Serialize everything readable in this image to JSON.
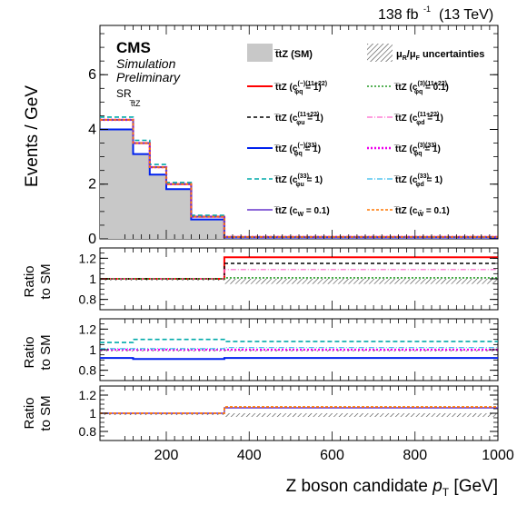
{
  "header": {
    "lumi": "138 fb",
    "lumi_exp": "-1",
    "energy": "(13 TeV)",
    "cms": "CMS",
    "sim": "Simulation",
    "prelim": "Preliminary",
    "region": "SR",
    "region_sub": "t̅tZ"
  },
  "colors": {
    "sm_fill": "#c8c8c8",
    "axis": "#000000"
  },
  "chart_data": [
    {
      "type": "line",
      "panel": "main",
      "ylabel": "Events / GeV",
      "xlim": [
        40,
        1000
      ],
      "ylim": [
        0,
        7.8
      ],
      "yticks": [
        0,
        2,
        4,
        6
      ],
      "bin_edges": [
        40,
        120,
        160,
        200,
        260,
        340,
        1000
      ],
      "series": [
        {
          "name": "t̅tZ (SM)",
          "style": "fill",
          "color": "#c8c8c8",
          "values": [
            4.0,
            3.1,
            2.35,
            1.82,
            0.71,
            0.05
          ]
        },
        {
          "name": "t̅tZ (c(−)(11+22)φq = 1)",
          "color": "#ff0000",
          "dash": "",
          "width": 2,
          "values": [
            4.35,
            3.5,
            2.62,
            2.0,
            0.81,
            0.07
          ]
        },
        {
          "name": "t̅tZ (c(3)(11+22)φq = 0.1)",
          "color": "#229922",
          "dash": "2,2",
          "width": 1.6,
          "values": [
            4.35,
            3.5,
            2.62,
            2.0,
            0.81,
            0.07
          ]
        },
        {
          "name": "t̅tZ (c(11+22)φu = 1)",
          "color": "#000000",
          "dash": "4,3",
          "width": 1.4,
          "values": [
            4.35,
            3.5,
            2.62,
            2.0,
            0.81,
            0.07
          ]
        },
        {
          "name": "t̅tZ (c(11+22)φd = 1)",
          "color": "#ff66cc",
          "dash": "6,2,1,2",
          "width": 1.2,
          "values": [
            4.35,
            3.5,
            2.62,
            2.0,
            0.81,
            0.07
          ]
        },
        {
          "name": "t̅tZ (c(−)(33)φq = 1)",
          "color": "#0022ee",
          "dash": "",
          "width": 2,
          "values": [
            4.0,
            3.1,
            2.35,
            1.82,
            0.71,
            0.05
          ]
        },
        {
          "name": "t̅tZ (c(3)(33)φq = 1)",
          "color": "#ee00ee",
          "dash": "2,2",
          "width": 2.4,
          "values": [
            4.35,
            3.5,
            2.62,
            2.0,
            0.81,
            0.07
          ]
        },
        {
          "name": "t̅tZ (c(33)φu = 1)",
          "color": "#00aaaa",
          "dash": "5,3",
          "width": 1.6,
          "values": [
            4.45,
            3.6,
            2.72,
            2.06,
            0.86,
            0.07
          ]
        },
        {
          "name": "t̅tZ (c(33)φd = 1)",
          "color": "#33bbee",
          "dash": "6,2,1,2",
          "width": 1.2,
          "values": [
            4.35,
            3.5,
            2.62,
            2.0,
            0.81,
            0.07
          ]
        },
        {
          "name": "t̅tZ (cW = 0.1)",
          "color": "#6633cc",
          "dash": "",
          "width": 1.4,
          "values": [
            4.35,
            3.5,
            2.62,
            2.0,
            0.81,
            0.07
          ]
        },
        {
          "name": "t̅tZ (cW̃ = 0.1)",
          "color": "#ff7700",
          "dash": "3,2",
          "width": 1.6,
          "values": [
            4.35,
            3.5,
            2.62,
            2.0,
            0.81,
            0.07
          ]
        }
      ],
      "legend_uncertainty": "μR/μF uncertainties"
    },
    {
      "type": "line",
      "panel": "ratio1",
      "ylabel": "Ratio to SM",
      "xlim": [
        40,
        1000
      ],
      "ylim": [
        0.7,
        1.3
      ],
      "yticks": [
        0.8,
        1.0,
        1.2
      ],
      "ytick_labels": [
        "0.8",
        "1",
        "1.2"
      ],
      "bin_edges": [
        40,
        340,
        1000
      ],
      "band": {
        "edges": [
          40,
          340,
          1000
        ],
        "low": [
          1.0,
          0.95
        ],
        "high": [
          1.0,
          1.0
        ]
      },
      "series": [
        {
          "name": "c(−)(11+22)φq",
          "color": "#ff0000",
          "width": 2,
          "dash": "",
          "values": [
            1.0,
            1.21
          ]
        },
        {
          "name": "c(11+22)φu",
          "color": "#000000",
          "width": 1.4,
          "dash": "4,3",
          "values": [
            1.0,
            1.15
          ]
        },
        {
          "name": "c(11+22)φd",
          "color": "#ff66cc",
          "width": 1.2,
          "dash": "6,2,1,2",
          "values": [
            1.0,
            1.09
          ]
        },
        {
          "name": "c(3)(11+22)φq",
          "color": "#229922",
          "width": 1.6,
          "dash": "2,2",
          "values": [
            1.0,
            1.01
          ]
        }
      ]
    },
    {
      "type": "line",
      "panel": "ratio2",
      "ylabel": "Ratio to SM",
      "xlim": [
        40,
        1000
      ],
      "ylim": [
        0.7,
        1.3
      ],
      "yticks": [
        0.8,
        1.0,
        1.2
      ],
      "ytick_labels": [
        "0.8",
        "1",
        "1.2"
      ],
      "bin_edges": [
        40,
        120,
        340,
        1000
      ],
      "band": {
        "edges": [
          40,
          1000
        ],
        "low": [
          0.99
        ],
        "high": [
          1.0
        ]
      },
      "series": [
        {
          "name": "c(33)φu",
          "color": "#00aaaa",
          "width": 1.6,
          "dash": "5,3",
          "values": [
            1.07,
            1.1,
            1.08
          ]
        },
        {
          "name": "c(3)(33)φq",
          "color": "#ee00ee",
          "width": 2.2,
          "dash": "2,2",
          "values": [
            1.0,
            1.0,
            1.0
          ]
        },
        {
          "name": "c(33)φd",
          "color": "#33bbee",
          "width": 1.2,
          "dash": "6,2,1,2",
          "values": [
            1.01,
            1.01,
            1.02
          ]
        },
        {
          "name": "c(−)(33)φq",
          "color": "#0022ee",
          "width": 2,
          "dash": "",
          "values": [
            0.92,
            0.91,
            0.92
          ]
        }
      ]
    },
    {
      "type": "line",
      "panel": "ratio3",
      "ylabel": "Ratio to SM",
      "xlabel": "Z boson candidate p_T [GeV]",
      "xlim": [
        40,
        1000
      ],
      "xticks": [
        200,
        400,
        600,
        800,
        1000
      ],
      "ylim": [
        0.7,
        1.3
      ],
      "yticks": [
        0.8,
        1.0,
        1.2
      ],
      "ytick_labels": [
        "0.8",
        "1",
        "1.2"
      ],
      "bin_edges": [
        40,
        340,
        1000
      ],
      "band": {
        "edges": [
          40,
          340,
          1000
        ],
        "low": [
          1.0,
          0.96
        ],
        "high": [
          1.0,
          1.0
        ]
      },
      "series": [
        {
          "name": "cW",
          "color": "#6633cc",
          "width": 1.4,
          "dash": "",
          "values": [
            1.0,
            1.06
          ]
        },
        {
          "name": "cW̃",
          "color": "#ff7700",
          "width": 1.8,
          "dash": "3,2",
          "values": [
            1.0,
            1.07
          ]
        }
      ]
    }
  ],
  "legend": {
    "sm": "t̅tZ (SM)",
    "unc": "μ",
    "unc_r": "R",
    "unc_slash": "/μ",
    "unc_f": "F",
    "unc_word": "uncertainties",
    "rows": [
      [
        "t̅tZ (c",
        "(−)(11+22)",
        "φq",
        " = 1)"
      ],
      [
        "t̅tZ (c",
        "(3)(11+22)",
        "φq",
        " = 0.1)"
      ],
      [
        "t̅tZ (c",
        "(11+22)",
        "φu",
        " = 1)"
      ],
      [
        "t̅tZ (c",
        "(11+22)",
        "φd",
        " = 1)"
      ],
      [
        "t̅tZ (c",
        "(−)(33)",
        "φq",
        " = 1)"
      ],
      [
        "t̅tZ (c",
        "(3)(33)",
        "φq",
        " = 1)"
      ],
      [
        "t̅tZ (c",
        "(33)",
        "φu",
        " = 1)"
      ],
      [
        "t̅tZ (c",
        "(33)",
        "φd",
        " = 1)"
      ],
      [
        "t̅tZ (c",
        "",
        "W",
        " = 0.1)"
      ],
      [
        "t̅tZ (c",
        "",
        "W̃",
        " = 0.1)"
      ]
    ]
  }
}
